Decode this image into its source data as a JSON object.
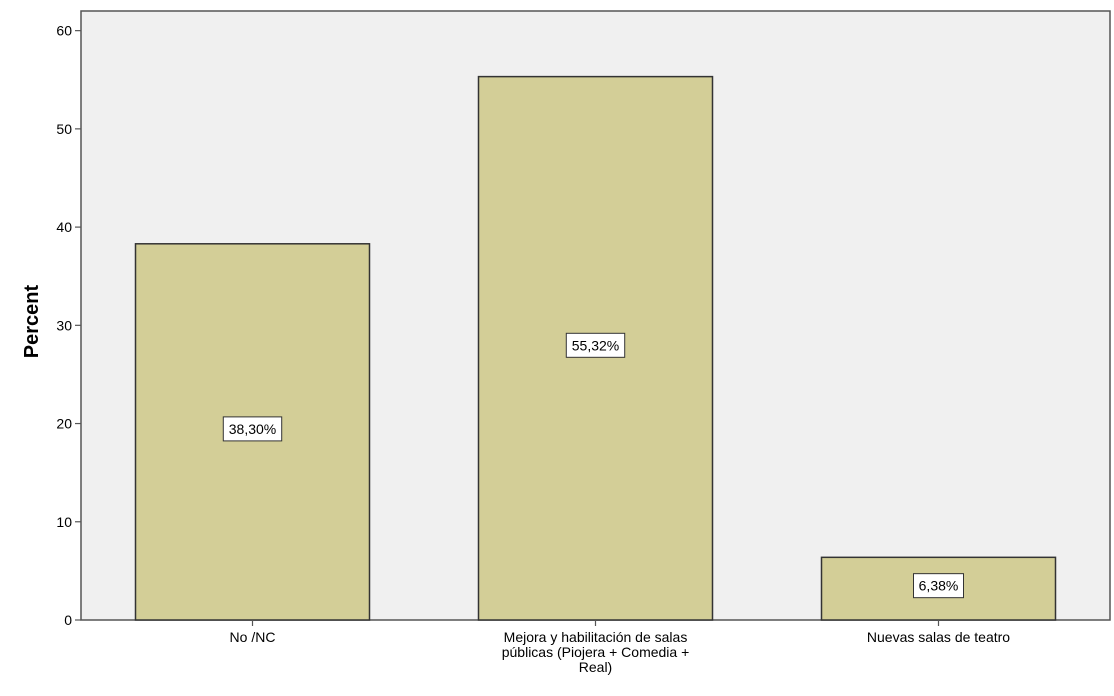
{
  "chart_data": {
    "type": "bar",
    "categories": [
      "No /NC",
      "Mejora y habilitación de salas públicas (Piojera + Comedia + Real)",
      "Nuevas salas de teatro"
    ],
    "category_label_lines": [
      [
        "No /NC"
      ],
      [
        "Mejora y habilitación de salas",
        "públicas (Piojera + Comedia +",
        "Real)"
      ],
      [
        "Nuevas salas de teatro"
      ]
    ],
    "values": [
      38.3,
      55.32,
      6.38
    ],
    "data_labels": [
      "38,30%",
      "55,32%",
      "6,38%"
    ],
    "ylabel": "Percent",
    "ylim": [
      0,
      62
    ],
    "yticks": [
      0,
      10,
      20,
      30,
      40,
      50,
      60
    ],
    "grid": false,
    "colors": {
      "bar_fill": "#d3ce97",
      "bar_stroke": "#333333",
      "plot_bg": "#f0f0f0",
      "axis": "#555555"
    }
  }
}
